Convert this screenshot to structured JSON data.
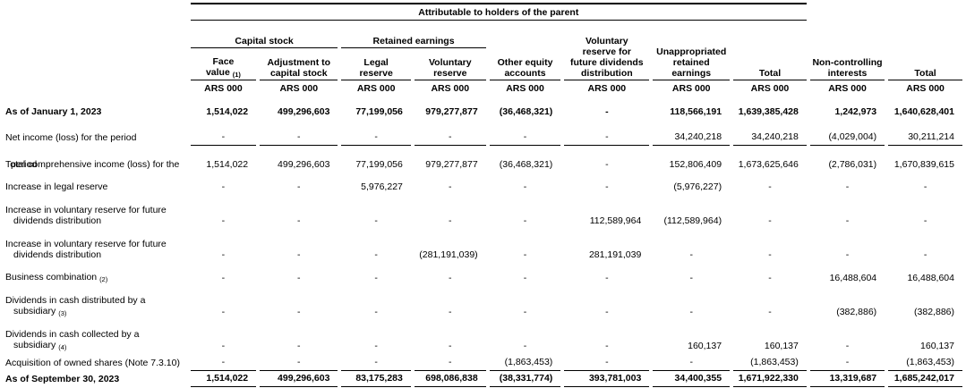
{
  "table": {
    "parent_header": "Attributable to holders of the parent",
    "groups": [
      {
        "label": "Capital stock"
      },
      {
        "label": "Retained earnings"
      }
    ],
    "columns": [
      {
        "lines": [
          [
            {
              "t": "Face"
            }
          ],
          [
            {
              "t": "value "
            },
            {
              "t": "(1)",
              "sub": true
            }
          ]
        ],
        "unit": "ARS 000"
      },
      {
        "lines": [
          [
            {
              "t": "Adjustment to"
            }
          ],
          [
            {
              "t": "capital stock"
            }
          ]
        ],
        "unit": "ARS 000"
      },
      {
        "lines": [
          [
            {
              "t": "Legal"
            }
          ],
          [
            {
              "t": "reserve"
            }
          ]
        ],
        "unit": "ARS 000"
      },
      {
        "lines": [
          [
            {
              "t": "Voluntary"
            }
          ],
          [
            {
              "t": "reserve"
            }
          ]
        ],
        "unit": "ARS 000"
      },
      {
        "lines": [
          [
            {
              "t": "Other equity"
            }
          ],
          [
            {
              "t": "accounts"
            }
          ]
        ],
        "unit": "ARS 000"
      },
      {
        "lines": [
          [
            {
              "t": "Voluntary"
            }
          ],
          [
            {
              "t": "reserve for"
            }
          ],
          [
            {
              "t": "future dividends"
            }
          ],
          [
            {
              "t": "distribution"
            }
          ]
        ],
        "unit": "ARS 000"
      },
      {
        "lines": [
          [
            {
              "t": "Unappropriated"
            }
          ],
          [
            {
              "t": "retained"
            }
          ],
          [
            {
              "t": "earnings"
            }
          ]
        ],
        "unit": "ARS 000"
      },
      {
        "lines": [
          [
            {
              "t": "Total"
            }
          ]
        ],
        "unit": "ARS 000"
      },
      {
        "lines": [
          [
            {
              "t": "Non-controlling"
            }
          ],
          [
            {
              "t": "interests"
            }
          ]
        ],
        "unit": "ARS 000"
      },
      {
        "lines": [
          [
            {
              "t": "Total"
            }
          ]
        ],
        "unit": "ARS 000"
      }
    ],
    "rows": [
      {
        "label_lines": [
          [
            {
              "t": "As of January 1, 2023"
            }
          ]
        ],
        "bold": true,
        "values": [
          "1,514,022",
          "499,296,603",
          "77,199,056",
          "979,277,877",
          "(36,468,321)",
          "-",
          "118,566,191",
          "1,639,385,428",
          "1,242,973",
          "1,640,628,401"
        ]
      },
      {
        "label_lines": [
          [
            {
              "t": "Net income (loss) for the period"
            }
          ]
        ],
        "underline": true,
        "values": [
          "-",
          "-",
          "-",
          "-",
          "-",
          "-",
          "34,240,218",
          "34,240,218",
          "(4,029,004)",
          "30,211,214"
        ]
      },
      {
        "label_lines": [
          [
            {
              "t": "Total comprehensive income (loss) for the"
            }
          ]
        ],
        "overlap": "period",
        "values": [
          "1,514,022",
          "499,296,603",
          "77,199,056",
          "979,277,877",
          "(36,468,321)",
          "-",
          "152,806,409",
          "1,673,625,646",
          "(2,786,031)",
          "1,670,839,615"
        ]
      },
      {
        "label_lines": [
          [
            {
              "t": "Increase in legal reserve"
            }
          ]
        ],
        "values": [
          "-",
          "-",
          "5,976,227",
          "-",
          "-",
          "-",
          "(5,976,227)",
          "-",
          "-",
          "-"
        ]
      },
      {
        "label_lines": [
          [
            {
              "t": "Increase in voluntary reserve for future"
            }
          ],
          [
            {
              "t": "dividends distribution"
            }
          ]
        ],
        "indent2": true,
        "values": [
          "-",
          "-",
          "-",
          "-",
          "-",
          "112,589,964",
          "(112,589,964)",
          "-",
          "-",
          "-"
        ]
      },
      {
        "label_lines": [
          [
            {
              "t": "Increase in voluntary reserve for future"
            }
          ],
          [
            {
              "t": "dividends distribution"
            }
          ]
        ],
        "indent2": true,
        "values": [
          "-",
          "-",
          "-",
          "(281,191,039)",
          "-",
          "281,191,039",
          "-",
          "-",
          "-",
          "-"
        ]
      },
      {
        "label_lines": [
          [
            {
              "t": "Business combination "
            },
            {
              "t": "(2)",
              "sub": true
            }
          ]
        ],
        "values": [
          "-",
          "-",
          "-",
          "-",
          "-",
          "-",
          "-",
          "-",
          "16,488,604",
          "16,488,604"
        ]
      },
      {
        "label_lines": [
          [
            {
              "t": "Dividends in cash distributed by a"
            }
          ],
          [
            {
              "t": "subsidiary "
            },
            {
              "t": "(3)",
              "sub": true
            }
          ]
        ],
        "indent2": true,
        "values": [
          "-",
          "-",
          "-",
          "-",
          "-",
          "-",
          "-",
          "-",
          "(382,886)",
          "(382,886)"
        ]
      },
      {
        "label_lines": [
          [
            {
              "t": "Dividends in cash collected by a"
            }
          ],
          [
            {
              "t": "subsidiary "
            },
            {
              "t": "(4)",
              "sub": true
            }
          ]
        ],
        "indent2": true,
        "values": [
          "-",
          "-",
          "-",
          "-",
          "-",
          "-",
          "160,137",
          "160,137",
          "-",
          "160,137"
        ]
      },
      {
        "label_lines": [
          [
            {
              "t": "Acquisition of owned shares (Note 7.3.10)"
            }
          ]
        ],
        "underline": true,
        "values": [
          "-",
          "-",
          "-",
          "-",
          "(1,863,453)",
          "-",
          "-",
          "(1,863,453)",
          "-",
          "(1,863,453)"
        ]
      },
      {
        "label_lines": [
          [
            {
              "t": "As of September 30, 2023"
            }
          ]
        ],
        "bold": true,
        "underline": true,
        "values": [
          "1,514,022",
          "499,296,603",
          "83,175,283",
          "698,086,838",
          "(38,331,774)",
          "393,781,003",
          "34,400,355",
          "1,671,922,330",
          "13,319,687",
          "1,685,242,017"
        ]
      }
    ]
  }
}
